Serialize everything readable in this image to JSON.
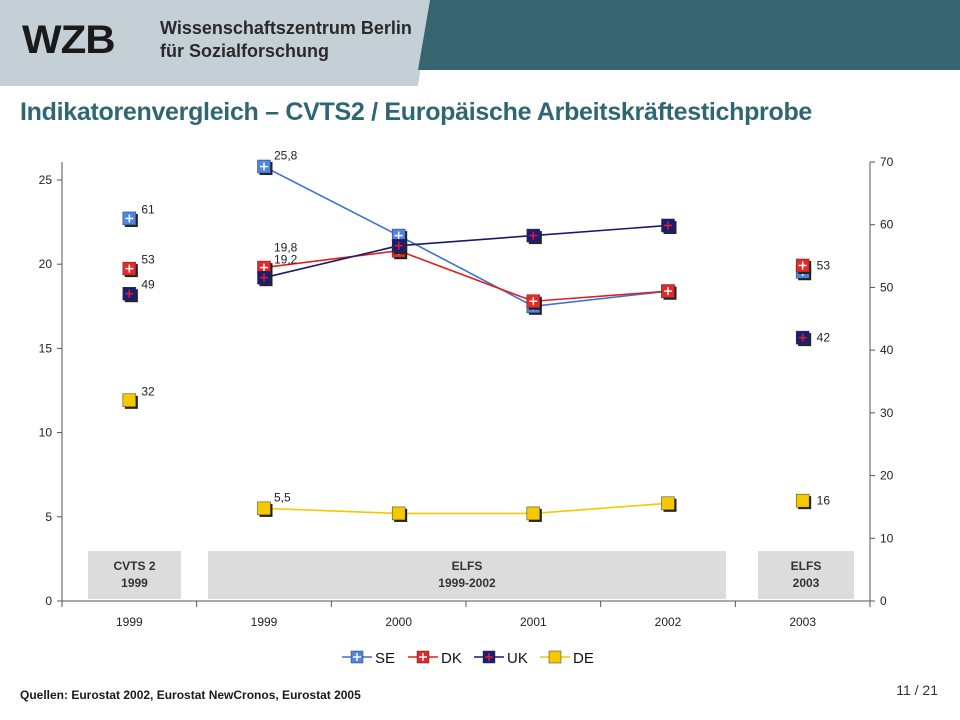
{
  "header": {
    "logo": "WZB",
    "org_line1": "Wissenschaftszentrum Berlin",
    "org_line2": "für Sozialforschung",
    "colors": {
      "light_band": "#c5d0d6",
      "dark_band": "#36646f"
    }
  },
  "title": "Indikatorenvergleich – CVTS2 / Europäische Arbeitskräftestichprobe",
  "footer": {
    "source": "Quellen: Eurostat 2002, Eurostat NewCronos, Eurostat 2005",
    "page": "11 / 21"
  },
  "chart_data": {
    "type": "line",
    "title": "",
    "categories": [
      "1999",
      "1999",
      "2000",
      "2001",
      "2002",
      "2003"
    ],
    "y_left": {
      "range": [
        0,
        25
      ],
      "ticks": [
        "0",
        "5",
        "10",
        "15",
        "20",
        "25"
      ]
    },
    "y_right": {
      "range": [
        0,
        70
      ],
      "ticks": [
        "0",
        "10",
        "20",
        "30",
        "40",
        "50",
        "60",
        "70"
      ]
    },
    "grid": false,
    "legend_position": "bottom",
    "section_boxes": [
      {
        "line1": "CVTS 2",
        "line2": "1999"
      },
      {
        "line1": "ELFS",
        "line2": "1999-2002"
      },
      {
        "line1": "ELFS",
        "line2": "2003"
      }
    ],
    "series": [
      {
        "name": "SE",
        "color": "#3b6fd8",
        "marker_fill": "#4f84e8",
        "cross_color": "#ffffff",
        "cvts": 61,
        "cvts_label": "61",
        "elfs": [
          25.8,
          21.7,
          17.5,
          18.4
        ],
        "elfs_2003": 52.5,
        "labels": {
          "elfs_1999": "25,8"
        }
      },
      {
        "name": "DK",
        "color": "#e02020",
        "marker_fill": "#e82828",
        "cross_color": "#ffffff",
        "cvts": 53,
        "cvts_label": "53",
        "elfs": [
          19.8,
          20.8,
          17.8,
          18.4
        ],
        "elfs_2003": 53.5,
        "elfs_2003_label": "53",
        "labels": {
          "elfs_1999": "19,8"
        }
      },
      {
        "name": "UK",
        "color": "#1a1a6e",
        "marker_fill": "#1c1c78",
        "cross_color": "#e02020",
        "cvts": 49,
        "cvts_label": "49",
        "elfs": [
          19.2,
          21.1,
          21.7,
          22.3
        ],
        "elfs_2003": 42,
        "elfs_2003_label": "42",
        "labels": {
          "elfs_1999": "19,2"
        }
      },
      {
        "name": "DE",
        "color": "#f5c800",
        "marker_fill": "#f5c800",
        "cross_color": "",
        "cvts": 32,
        "cvts_label": "32",
        "elfs": [
          5.5,
          5.2,
          5.2,
          5.8
        ],
        "elfs_2003": 16,
        "elfs_2003_label": "16",
        "labels": {
          "elfs_1999": "5,5"
        }
      }
    ]
  }
}
